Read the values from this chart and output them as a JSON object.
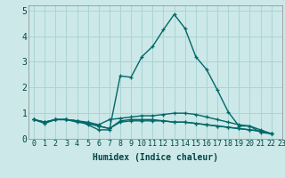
{
  "xlabel": "Humidex (Indice chaleur)",
  "xlim": [
    -0.5,
    23
  ],
  "ylim": [
    0,
    5.2
  ],
  "xticks": [
    0,
    1,
    2,
    3,
    4,
    5,
    6,
    7,
    8,
    9,
    10,
    11,
    12,
    13,
    14,
    15,
    16,
    17,
    18,
    19,
    20,
    21,
    22,
    23
  ],
  "yticks": [
    0,
    1,
    2,
    3,
    4,
    5
  ],
  "bg_color": "#cce8e8",
  "grid_color": "#aad4d4",
  "line_color": "#006868",
  "series": [
    [
      0.75,
      0.6,
      0.75,
      0.75,
      0.7,
      0.55,
      0.35,
      0.35,
      2.45,
      2.4,
      3.2,
      3.6,
      4.25,
      4.85,
      4.3,
      3.2,
      2.7,
      1.9,
      1.05,
      0.5,
      0.5,
      0.25,
      0.2
    ],
    [
      0.75,
      0.65,
      0.75,
      0.75,
      0.7,
      0.65,
      0.55,
      0.75,
      0.8,
      0.85,
      0.9,
      0.9,
      0.95,
      1.0,
      1.0,
      0.95,
      0.85,
      0.75,
      0.65,
      0.55,
      0.5,
      0.35,
      0.2
    ],
    [
      0.75,
      0.65,
      0.75,
      0.75,
      0.65,
      0.6,
      0.5,
      0.4,
      0.7,
      0.75,
      0.75,
      0.75,
      0.7,
      0.65,
      0.65,
      0.6,
      0.55,
      0.5,
      0.45,
      0.4,
      0.35,
      0.3,
      0.2
    ],
    [
      0.75,
      0.65,
      0.75,
      0.75,
      0.7,
      0.6,
      0.5,
      0.4,
      0.65,
      0.7,
      0.7,
      0.7,
      0.7,
      0.65,
      0.65,
      0.6,
      0.55,
      0.5,
      0.45,
      0.4,
      0.35,
      0.3,
      0.2
    ]
  ],
  "tick_fontsize": 6,
  "xlabel_fontsize": 7
}
